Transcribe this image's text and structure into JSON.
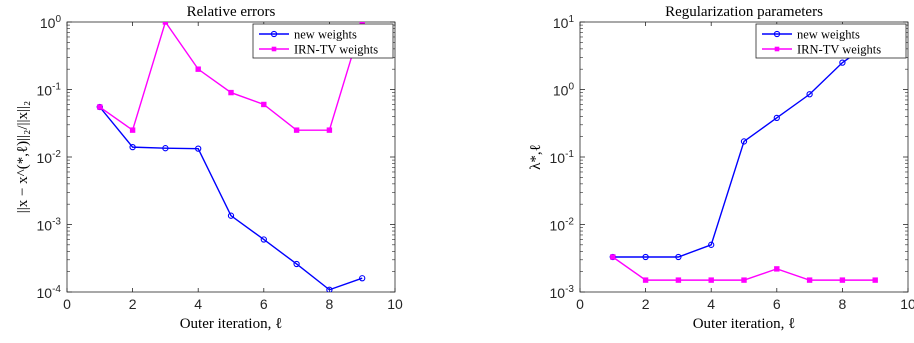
{
  "chart_data": [
    {
      "type": "line",
      "title": "Relative errors",
      "xlabel": "Outer iteration, ℓ",
      "ylabel": "||x − x^(*,ℓ)||₂/||x||₂",
      "xscale": "linear",
      "yscale": "log",
      "xlim": [
        0,
        10
      ],
      "ylim": [
        0.0001,
        1
      ],
      "xticks": [
        0,
        2,
        4,
        6,
        8,
        10
      ],
      "yticks": [
        {
          "value": 0.0001,
          "base": "10",
          "exp": "-4"
        },
        {
          "value": 0.001,
          "base": "10",
          "exp": "-3"
        },
        {
          "value": 0.01,
          "base": "10",
          "exp": "-2"
        },
        {
          "value": 0.1,
          "base": "10",
          "exp": "-1"
        },
        {
          "value": 1,
          "base": "10",
          "exp": "0"
        }
      ],
      "legend_position": "top-right",
      "grid": false,
      "series": [
        {
          "name": "new weights",
          "color": "#0000ff",
          "marker": "circle",
          "x": [
            1,
            2,
            3,
            4,
            5,
            6,
            7,
            8,
            9
          ],
          "y": [
            0.055,
            0.014,
            0.0135,
            0.0133,
            0.00135,
            0.0006,
            0.00026,
            0.000108,
            0.00016
          ]
        },
        {
          "name": "IRN-TV weights",
          "color": "#ff00ff",
          "marker": "square",
          "x": [
            1,
            2,
            3,
            4,
            5,
            6,
            7,
            8,
            9
          ],
          "y": [
            0.055,
            0.025,
            1.0,
            0.2,
            0.09,
            0.06,
            0.025,
            0.025,
            1.0
          ]
        }
      ]
    },
    {
      "type": "line",
      "title": "Regularization parameters",
      "xlabel": "Outer iteration, ℓ",
      "ylabel": "λ*,ℓ",
      "xscale": "linear",
      "yscale": "log",
      "xlim": [
        0,
        10
      ],
      "ylim": [
        0.001,
        10
      ],
      "xticks": [
        0,
        2,
        4,
        6,
        8,
        10
      ],
      "yticks": [
        {
          "value": 0.001,
          "base": "10",
          "exp": "-3"
        },
        {
          "value": 0.01,
          "base": "10",
          "exp": "-2"
        },
        {
          "value": 0.1,
          "base": "10",
          "exp": "-1"
        },
        {
          "value": 1,
          "base": "10",
          "exp": "0"
        },
        {
          "value": 10,
          "base": "10",
          "exp": "1"
        }
      ],
      "legend_position": "top-right",
      "grid": false,
      "series": [
        {
          "name": "new weights",
          "color": "#0000ff",
          "marker": "circle",
          "x": [
            1,
            2,
            3,
            4,
            5,
            6,
            7,
            8,
            9
          ],
          "y": [
            0.0033,
            0.0033,
            0.0033,
            0.005,
            0.17,
            0.38,
            0.85,
            2.5,
            5.5
          ]
        },
        {
          "name": "IRN-TV weights",
          "color": "#ff00ff",
          "marker": "square",
          "x": [
            1,
            2,
            3,
            4,
            5,
            6,
            7,
            8,
            9
          ],
          "y": [
            0.0033,
            0.0015,
            0.0015,
            0.0015,
            0.0015,
            0.0022,
            0.0015,
            0.0015,
            0.0015
          ]
        }
      ]
    }
  ]
}
